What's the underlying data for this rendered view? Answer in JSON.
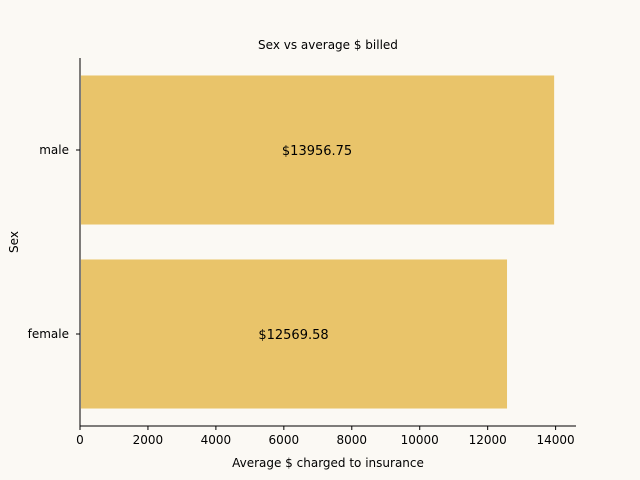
{
  "chart_data": {
    "type": "bar",
    "orientation": "horizontal",
    "title": "Sex vs average $ billed",
    "xlabel": "Average $ charged to insurance",
    "ylabel": "Sex",
    "categories": [
      "male",
      "female"
    ],
    "values": [
      13956.75,
      12569.58
    ],
    "bar_labels": [
      "$13956.75",
      "$12569.58"
    ],
    "xlim": [
      0,
      14600
    ],
    "xticks": [
      0,
      2000,
      4000,
      6000,
      8000,
      10000,
      12000,
      14000
    ],
    "xtick_labels": [
      "0",
      "2000",
      "4000",
      "6000",
      "8000",
      "10000",
      "12000",
      "14000"
    ],
    "grid": false,
    "colors": {
      "bar": "#e9c46a",
      "background": "#fbf9f4",
      "axis": "#000000"
    }
  }
}
